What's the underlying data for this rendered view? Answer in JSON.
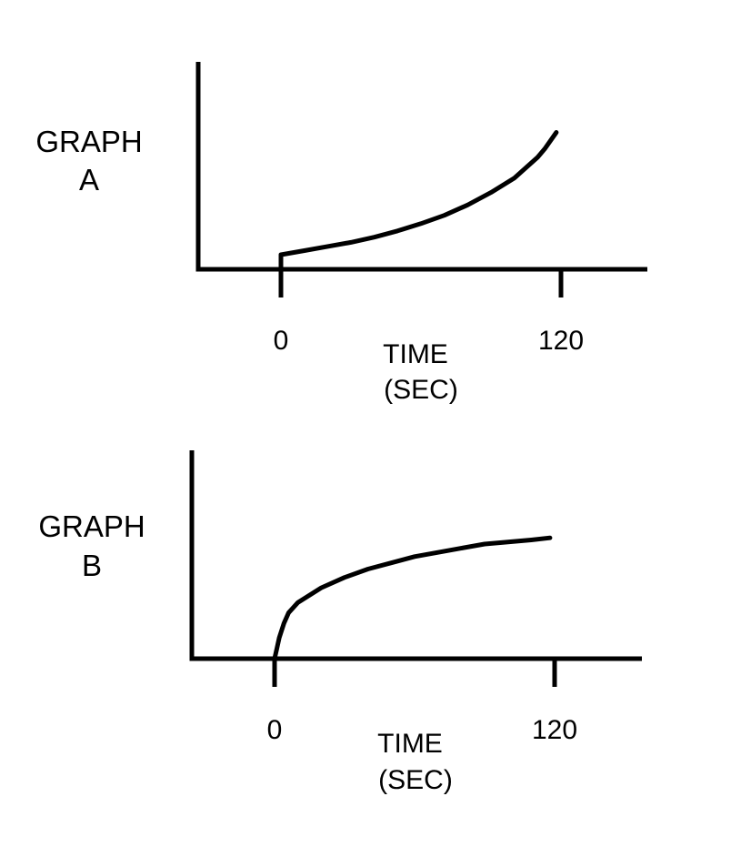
{
  "chart_data": [
    {
      "type": "line",
      "title": [
        "GRAPH",
        "A"
      ],
      "xlabel": [
        "TIME",
        "(SEC)"
      ],
      "ylabel": "",
      "x_ticks": [
        "0",
        "120"
      ],
      "xlim": [
        0,
        120
      ],
      "ylim": [
        0,
        1
      ],
      "curve_shape": "increasing, concave up",
      "series": [
        {
          "x": [
            0,
            0,
            10,
            20,
            30,
            40,
            50,
            60,
            70,
            80,
            90,
            100,
            110,
            113,
            118
          ],
          "y": [
            0.0,
            0.07,
            0.09,
            0.11,
            0.13,
            0.155,
            0.185,
            0.22,
            0.26,
            0.31,
            0.37,
            0.44,
            0.54,
            0.58,
            0.66
          ]
        }
      ]
    },
    {
      "type": "line",
      "title": [
        "GRAPH",
        "B"
      ],
      "xlabel": [
        "TIME",
        "(SEC)"
      ],
      "ylabel": "",
      "x_ticks": [
        "0",
        "120"
      ],
      "xlim": [
        0,
        120
      ],
      "ylim": [
        0,
        1
      ],
      "curve_shape": "increasing, concave down",
      "series": [
        {
          "x": [
            0,
            1,
            2,
            4,
            6,
            10,
            20,
            30,
            40,
            50,
            60,
            70,
            80,
            90,
            100,
            110,
            118
          ],
          "y": [
            0.0,
            0.05,
            0.1,
            0.17,
            0.22,
            0.27,
            0.34,
            0.39,
            0.43,
            0.46,
            0.49,
            0.51,
            0.53,
            0.55,
            0.56,
            0.57,
            0.58
          ]
        }
      ]
    }
  ]
}
